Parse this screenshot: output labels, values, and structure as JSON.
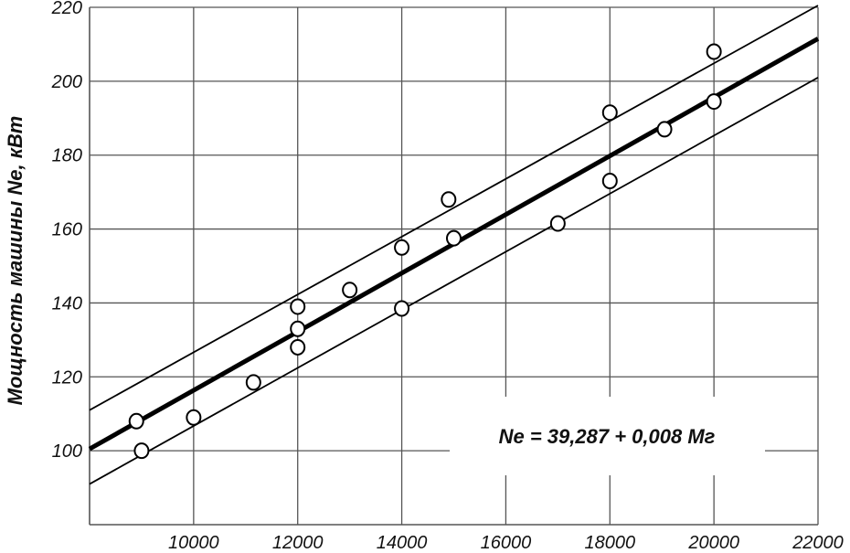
{
  "chart_data": {
    "type": "scatter",
    "title": "",
    "xlabel": "",
    "ylabel": "Мощность машины Ne, кВт",
    "xlim": [
      8000,
      22000
    ],
    "ylim": [
      80,
      220
    ],
    "xticks": [
      10000,
      12000,
      14000,
      16000,
      18000,
      20000,
      22000
    ],
    "yticks": [
      100,
      120,
      140,
      160,
      180,
      200,
      220
    ],
    "grid": true,
    "annotation": "Ne = 39,287 +  0,008 Mг",
    "points": [
      [
        8900,
        108
      ],
      [
        9000,
        100
      ],
      [
        10000,
        109
      ],
      [
        11150,
        118.5
      ],
      [
        12000,
        139
      ],
      [
        12000,
        133
      ],
      [
        12000,
        128
      ],
      [
        13000,
        143.5
      ],
      [
        14000,
        155
      ],
      [
        14000,
        138.5
      ],
      [
        14900,
        168
      ],
      [
        15000,
        157.5
      ],
      [
        17000,
        161.5
      ],
      [
        18000,
        191.5
      ],
      [
        18000,
        173
      ],
      [
        19050,
        187
      ],
      [
        20000,
        208
      ],
      [
        20000,
        194.5
      ]
    ],
    "lines": [
      {
        "role": "regression",
        "from": [
          8000,
          100.5
        ],
        "to": [
          22000,
          211.5
        ]
      },
      {
        "role": "upper-bound",
        "from": [
          8000,
          111
        ],
        "to": [
          22000,
          220.5
        ]
      },
      {
        "role": "lower-bound",
        "from": [
          8000,
          91
        ],
        "to": [
          22000,
          201
        ]
      }
    ],
    "colors": {
      "line": "#000000",
      "grid": "#555555",
      "marker_fill": "#ffffff"
    }
  }
}
